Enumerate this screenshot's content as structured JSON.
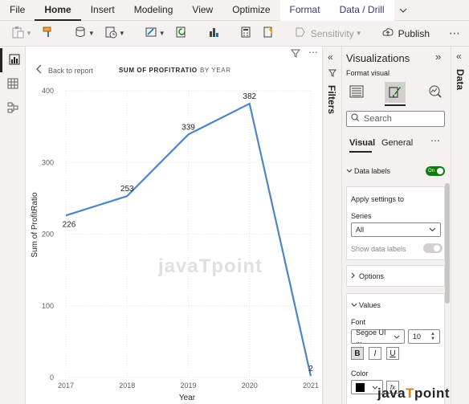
{
  "menubar": {
    "items": [
      "File",
      "Home",
      "Insert",
      "Modeling",
      "View",
      "Optimize",
      "Format",
      "Data / Drill"
    ],
    "active": "Home"
  },
  "ribbon": {
    "sensitivity_label": "Sensitivity",
    "publish_label": "Publish"
  },
  "visual": {
    "back_label": "Back to report",
    "breadcrumb_primary": "SUM OF PROFITRATIO",
    "breadcrumb_secondary": "BY YEAR"
  },
  "filters_pane": {
    "label": "Filters"
  },
  "viz_pane": {
    "title": "Visualizations",
    "subtitle": "Format visual",
    "search_placeholder": "Search",
    "subtabs": [
      "Visual",
      "General"
    ],
    "data_labels_label": "Data labels",
    "data_labels_toggle": "On",
    "apply_settings_label": "Apply settings to",
    "series_label": "Series",
    "series_value": "All",
    "show_data_labels_label": "Show data labels",
    "options_label": "Options",
    "values_label": "Values",
    "font_label": "Font",
    "font_family": "Segoe UI ...",
    "font_size": "10",
    "bold_label": "B",
    "italic_label": "I",
    "underline_label": "U",
    "color_label": "Color"
  },
  "data_pane": {
    "label": "Data"
  },
  "watermarks": {
    "canvas": "javaTpoint",
    "brand_prefix": "java",
    "brand_t": "T",
    "brand_suffix": "point"
  },
  "chart_data": {
    "type": "line",
    "x": [
      "2017",
      "2018",
      "2019",
      "2020",
      "2021"
    ],
    "series": [
      {
        "values": [
          226,
          253,
          339,
          382,
          2
        ]
      }
    ],
    "data_labels": [
      "226",
      "253",
      "339",
      "382",
      "2"
    ],
    "xlabel": "Year",
    "ylabel": "Sum of ProfitRatio",
    "ylim": [
      0,
      400
    ],
    "yticks": [
      0,
      100,
      200,
      300,
      400
    ],
    "grid": true,
    "line_color": "#4a86c8"
  }
}
